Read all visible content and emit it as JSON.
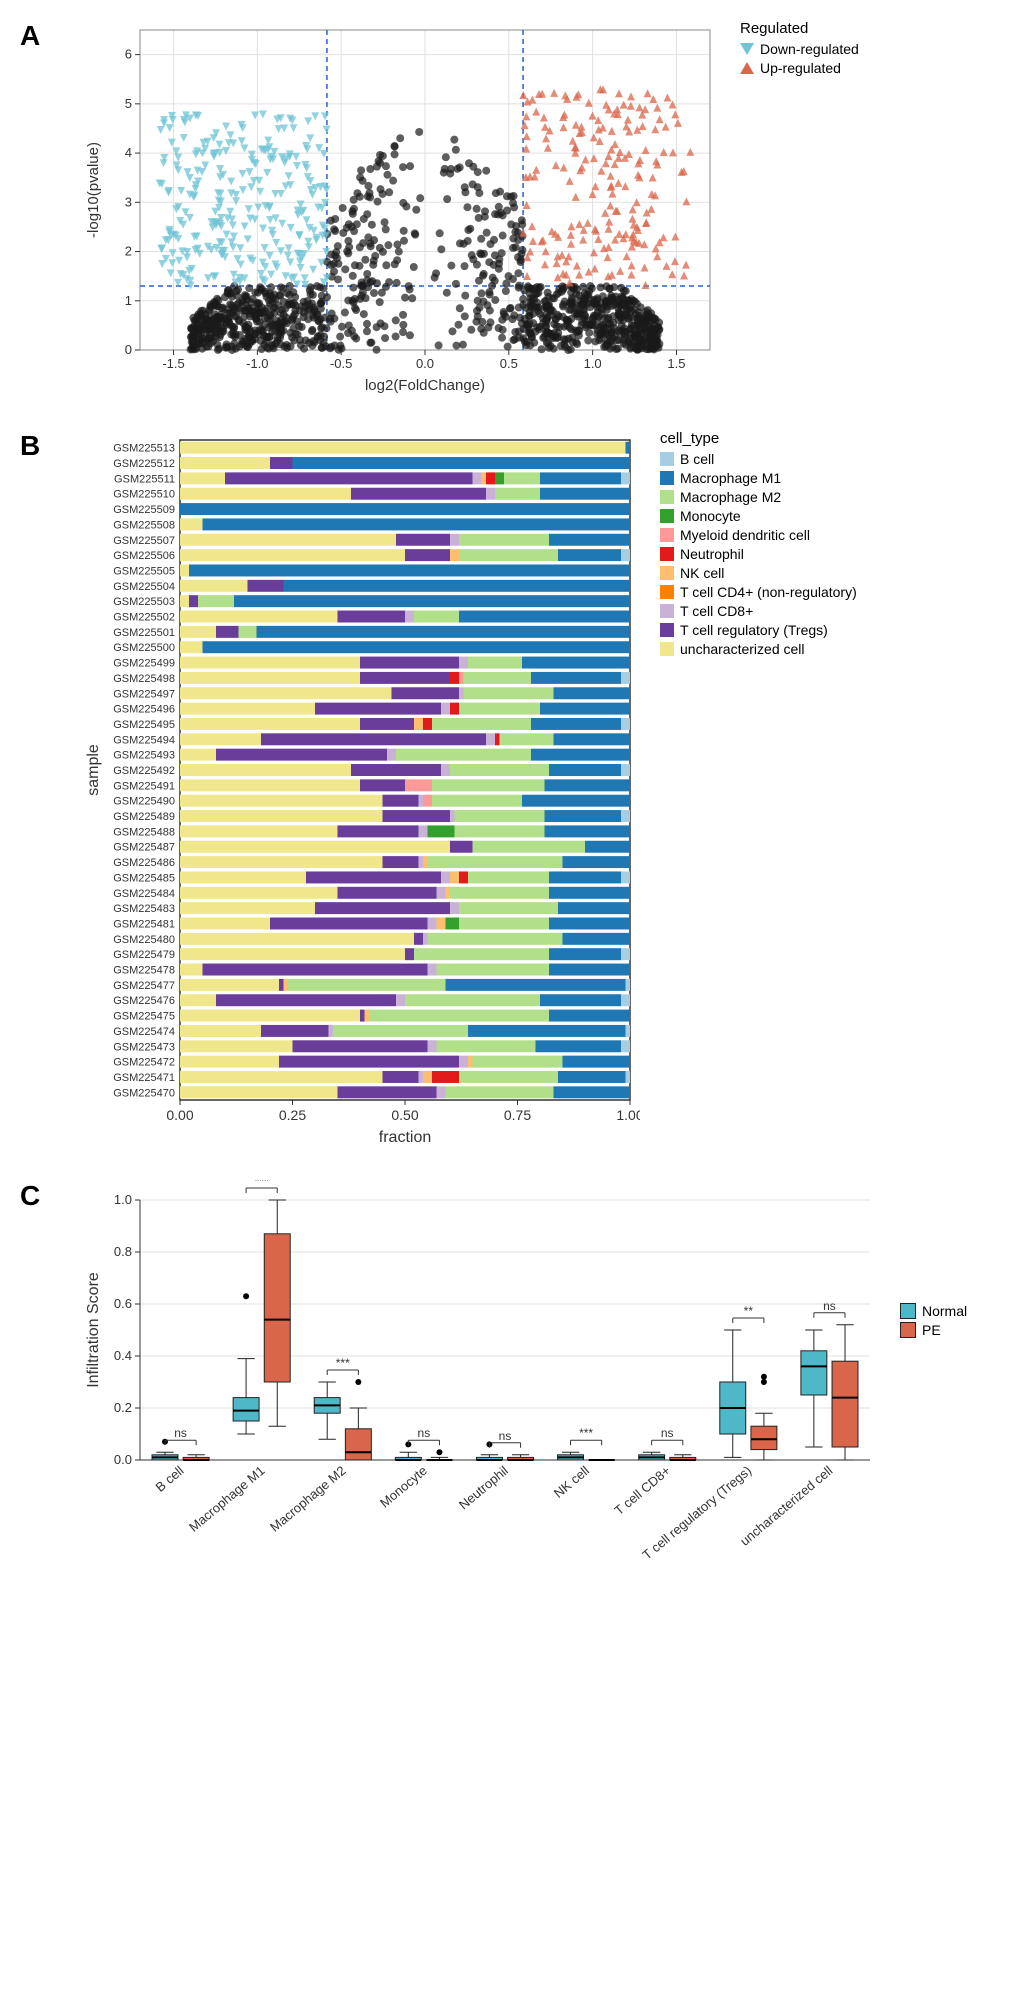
{
  "panelA": {
    "label": "A",
    "type": "volcano",
    "x_label": "log2(FoldChange)",
    "y_label": "-log10(pvalue)",
    "xlim": [
      -1.7,
      1.7
    ],
    "ylim": [
      0,
      6.5
    ],
    "xticks": [
      -1.5,
      -1.0,
      -0.5,
      0.0,
      0.5,
      1.0,
      1.5
    ],
    "yticks": [
      0,
      1,
      2,
      3,
      4,
      5,
      6
    ],
    "fc_threshold": 0.585,
    "p_threshold": 1.3,
    "dash_color": "#2b5fcb",
    "background_color": "#ffffff",
    "grid_color": "#e0e0e0",
    "legend_title": "Regulated",
    "legend_items": [
      {
        "label": "Down-regulated",
        "color": "#6fc4d5",
        "shape": "triangle-down"
      },
      {
        "label": "Up-regulated",
        "color": "#d9664a",
        "shape": "triangle-up"
      }
    ],
    "colors": {
      "down": "#6fc4d5",
      "up": "#d9664a",
      "ns": "#1a1a1a"
    },
    "point_size": 4,
    "n_points": {
      "ns": 1200,
      "down": 280,
      "up": 200
    }
  },
  "panelB": {
    "label": "B",
    "type": "stacked-bar",
    "x_label": "fraction",
    "y_label": "sample",
    "xlim": [
      0,
      1
    ],
    "xticks": [
      0.0,
      0.25,
      0.5,
      0.75,
      1.0
    ],
    "xtick_labels": [
      "0.00",
      "0.25",
      "0.50",
      "0.75",
      "1.00"
    ],
    "background_color": "#ffffff",
    "legend_title": "cell_type",
    "cell_types": [
      {
        "name": "B cell",
        "color": "#a6cee3"
      },
      {
        "name": "Macrophage M1",
        "color": "#1f78b4"
      },
      {
        "name": "Macrophage M2",
        "color": "#b2df8a"
      },
      {
        "name": "Monocyte",
        "color": "#33a02c"
      },
      {
        "name": "Myeloid dendritic cell",
        "color": "#fb9a99"
      },
      {
        "name": "Neutrophil",
        "color": "#e31a1c"
      },
      {
        "name": "NK cell",
        "color": "#fdbf6f"
      },
      {
        "name": "T cell CD4+ (non-regulatory)",
        "color": "#ff7f00"
      },
      {
        "name": "T cell CD8+",
        "color": "#cab2d6"
      },
      {
        "name": "T cell regulatory (Tregs)",
        "color": "#6a3d9a"
      },
      {
        "name": "uncharacterized cell",
        "color": "#f0e68c"
      }
    ],
    "samples": [
      {
        "id": "GSM225513",
        "f": {
          "uncharacterized cell": 0.99,
          "Macrophage M1": 0.01
        }
      },
      {
        "id": "GSM225512",
        "f": {
          "uncharacterized cell": 0.2,
          "T cell regulatory (Tregs)": 0.05,
          "Macrophage M1": 0.75
        }
      },
      {
        "id": "GSM225511",
        "f": {
          "uncharacterized cell": 0.1,
          "T cell regulatory (Tregs)": 0.55,
          "T cell CD8+": 0.02,
          "NK cell": 0.01,
          "Neutrophil": 0.02,
          "Monocyte": 0.02,
          "Macrophage M2": 0.08,
          "Macrophage M1": 0.18,
          "B cell": 0.02
        }
      },
      {
        "id": "GSM225510",
        "f": {
          "uncharacterized cell": 0.38,
          "T cell regulatory (Tregs)": 0.3,
          "T cell CD8+": 0.02,
          "Macrophage M2": 0.1,
          "Macrophage M1": 0.2
        }
      },
      {
        "id": "GSM225509",
        "f": {
          "Macrophage M1": 1.0
        }
      },
      {
        "id": "GSM225508",
        "f": {
          "uncharacterized cell": 0.05,
          "Macrophage M1": 0.95
        }
      },
      {
        "id": "GSM225507",
        "f": {
          "uncharacterized cell": 0.48,
          "T cell regulatory (Tregs)": 0.12,
          "T cell CD8+": 0.02,
          "Macrophage M2": 0.2,
          "Macrophage M1": 0.18
        }
      },
      {
        "id": "GSM225506",
        "f": {
          "uncharacterized cell": 0.5,
          "T cell regulatory (Tregs)": 0.1,
          "NK cell": 0.02,
          "Macrophage M2": 0.22,
          "Macrophage M1": 0.14,
          "B cell": 0.02
        }
      },
      {
        "id": "GSM225505",
        "f": {
          "uncharacterized cell": 0.02,
          "Macrophage M1": 0.98
        }
      },
      {
        "id": "GSM225504",
        "f": {
          "uncharacterized cell": 0.15,
          "T cell regulatory (Tregs)": 0.08,
          "Macrophage M1": 0.77
        }
      },
      {
        "id": "GSM225503",
        "f": {
          "uncharacterized cell": 0.02,
          "T cell regulatory (Tregs)": 0.02,
          "Macrophage M2": 0.08,
          "Macrophage M1": 0.88
        }
      },
      {
        "id": "GSM225502",
        "f": {
          "uncharacterized cell": 0.35,
          "T cell regulatory (Tregs)": 0.15,
          "T cell CD8+": 0.02,
          "Macrophage M2": 0.1,
          "Macrophage M1": 0.38
        }
      },
      {
        "id": "GSM225501",
        "f": {
          "uncharacterized cell": 0.08,
          "T cell regulatory (Tregs)": 0.05,
          "Macrophage M2": 0.04,
          "Macrophage M1": 0.83
        }
      },
      {
        "id": "GSM225500",
        "f": {
          "uncharacterized cell": 0.05,
          "Macrophage M1": 0.95
        }
      },
      {
        "id": "GSM225499",
        "f": {
          "uncharacterized cell": 0.4,
          "T cell regulatory (Tregs)": 0.22,
          "T cell CD8+": 0.02,
          "Macrophage M2": 0.12,
          "Macrophage M1": 0.24
        }
      },
      {
        "id": "GSM225498",
        "f": {
          "uncharacterized cell": 0.4,
          "T cell regulatory (Tregs)": 0.2,
          "Myeloid dendritic cell": 0.01,
          "Neutrophil": 0.02,
          "Macrophage M2": 0.15,
          "Macrophage M1": 0.2,
          "B cell": 0.02
        }
      },
      {
        "id": "GSM225497",
        "f": {
          "uncharacterized cell": 0.47,
          "T cell regulatory (Tregs)": 0.15,
          "T cell CD8+": 0.01,
          "Macrophage M2": 0.2,
          "Macrophage M1": 0.17
        }
      },
      {
        "id": "GSM225496",
        "f": {
          "uncharacterized cell": 0.3,
          "T cell regulatory (Tregs)": 0.28,
          "T cell CD8+": 0.02,
          "Neutrophil": 0.02,
          "Macrophage M2": 0.18,
          "Macrophage M1": 0.2
        }
      },
      {
        "id": "GSM225495",
        "f": {
          "uncharacterized cell": 0.4,
          "T cell regulatory (Tregs)": 0.12,
          "NK cell": 0.02,
          "Neutrophil": 0.02,
          "Macrophage M2": 0.22,
          "Macrophage M1": 0.2,
          "B cell": 0.02
        }
      },
      {
        "id": "GSM225494",
        "f": {
          "uncharacterized cell": 0.18,
          "T cell regulatory (Tregs)": 0.5,
          "T cell CD8+": 0.02,
          "Neutrophil": 0.01,
          "Macrophage M2": 0.12,
          "Macrophage M1": 0.17
        }
      },
      {
        "id": "GSM225493",
        "f": {
          "uncharacterized cell": 0.08,
          "T cell regulatory (Tregs)": 0.38,
          "T cell CD8+": 0.02,
          "Macrophage M2": 0.3,
          "Macrophage M1": 0.22
        }
      },
      {
        "id": "GSM225492",
        "f": {
          "uncharacterized cell": 0.38,
          "T cell regulatory (Tregs)": 0.2,
          "T cell CD8+": 0.02,
          "Macrophage M2": 0.22,
          "Macrophage M1": 0.16,
          "B cell": 0.02
        }
      },
      {
        "id": "GSM225491",
        "f": {
          "uncharacterized cell": 0.4,
          "T cell regulatory (Tregs)": 0.1,
          "Myeloid dendritic cell": 0.06,
          "Macrophage M2": 0.25,
          "Macrophage M1": 0.19
        }
      },
      {
        "id": "GSM225490",
        "f": {
          "uncharacterized cell": 0.45,
          "T cell regulatory (Tregs)": 0.08,
          "T cell CD8+": 0.01,
          "Myeloid dendritic cell": 0.02,
          "Macrophage M2": 0.2,
          "Macrophage M1": 0.24
        }
      },
      {
        "id": "GSM225489",
        "f": {
          "uncharacterized cell": 0.45,
          "T cell regulatory (Tregs)": 0.15,
          "T cell CD8+": 0.01,
          "Macrophage M2": 0.2,
          "Macrophage M1": 0.17,
          "B cell": 0.02
        }
      },
      {
        "id": "GSM225488",
        "f": {
          "uncharacterized cell": 0.35,
          "T cell regulatory (Tregs)": 0.18,
          "T cell CD8+": 0.02,
          "Monocyte": 0.06,
          "Macrophage M2": 0.2,
          "Macrophage M1": 0.19
        }
      },
      {
        "id": "GSM225487",
        "f": {
          "uncharacterized cell": 0.6,
          "T cell regulatory (Tregs)": 0.05,
          "Macrophage M2": 0.25,
          "Macrophage M1": 0.1
        }
      },
      {
        "id": "GSM225486",
        "f": {
          "uncharacterized cell": 0.45,
          "T cell regulatory (Tregs)": 0.08,
          "T cell CD8+": 0.01,
          "NK cell": 0.01,
          "Macrophage M2": 0.3,
          "Macrophage M1": 0.15
        }
      },
      {
        "id": "GSM225485",
        "f": {
          "uncharacterized cell": 0.28,
          "T cell regulatory (Tregs)": 0.3,
          "T cell CD8+": 0.02,
          "NK cell": 0.02,
          "Neutrophil": 0.02,
          "Macrophage M2": 0.18,
          "Macrophage M1": 0.16,
          "B cell": 0.02
        }
      },
      {
        "id": "GSM225484",
        "f": {
          "uncharacterized cell": 0.35,
          "T cell regulatory (Tregs)": 0.22,
          "T cell CD8+": 0.02,
          "NK cell": 0.01,
          "Macrophage M2": 0.22,
          "Macrophage M1": 0.18
        }
      },
      {
        "id": "GSM225483",
        "f": {
          "uncharacterized cell": 0.3,
          "T cell regulatory (Tregs)": 0.3,
          "T cell CD8+": 0.02,
          "Macrophage M2": 0.22,
          "Macrophage M1": 0.16
        }
      },
      {
        "id": "GSM225481",
        "f": {
          "uncharacterized cell": 0.2,
          "T cell regulatory (Tregs)": 0.35,
          "T cell CD8+": 0.02,
          "NK cell": 0.02,
          "Monocyte": 0.03,
          "Macrophage M2": 0.2,
          "Macrophage M1": 0.18
        }
      },
      {
        "id": "GSM225480",
        "f": {
          "uncharacterized cell": 0.52,
          "T cell regulatory (Tregs)": 0.02,
          "T cell CD8+": 0.01,
          "Macrophage M2": 0.3,
          "Macrophage M1": 0.15
        }
      },
      {
        "id": "GSM225479",
        "f": {
          "uncharacterized cell": 0.5,
          "T cell regulatory (Tregs)": 0.02,
          "Macrophage M2": 0.3,
          "Macrophage M1": 0.16,
          "B cell": 0.02
        }
      },
      {
        "id": "GSM225478",
        "f": {
          "uncharacterized cell": 0.05,
          "T cell regulatory (Tregs)": 0.5,
          "T cell CD8+": 0.02,
          "Macrophage M2": 0.25,
          "Macrophage M1": 0.18
        }
      },
      {
        "id": "GSM225477",
        "f": {
          "uncharacterized cell": 0.22,
          "T cell regulatory (Tregs)": 0.01,
          "NK cell": 0.01,
          "Macrophage M2": 0.35,
          "Macrophage M1": 0.4,
          "B cell": 0.01
        }
      },
      {
        "id": "GSM225476",
        "f": {
          "uncharacterized cell": 0.08,
          "T cell regulatory (Tregs)": 0.4,
          "T cell CD8+": 0.02,
          "Macrophage M2": 0.3,
          "Macrophage M1": 0.18,
          "B cell": 0.02
        }
      },
      {
        "id": "GSM225475",
        "f": {
          "uncharacterized cell": 0.4,
          "T cell regulatory (Tregs)": 0.01,
          "NK cell": 0.01,
          "Macrophage M2": 0.4,
          "Macrophage M1": 0.18
        }
      },
      {
        "id": "GSM225474",
        "f": {
          "uncharacterized cell": 0.18,
          "T cell regulatory (Tregs)": 0.15,
          "T cell CD8+": 0.01,
          "Macrophage M2": 0.3,
          "Macrophage M1": 0.35,
          "B cell": 0.01
        }
      },
      {
        "id": "GSM225473",
        "f": {
          "uncharacterized cell": 0.25,
          "T cell regulatory (Tregs)": 0.3,
          "T cell CD8+": 0.02,
          "Macrophage M2": 0.22,
          "Macrophage M1": 0.19,
          "B cell": 0.02
        }
      },
      {
        "id": "GSM225472",
        "f": {
          "uncharacterized cell": 0.22,
          "T cell regulatory (Tregs)": 0.4,
          "T cell CD8+": 0.02,
          "NK cell": 0.01,
          "Macrophage M2": 0.2,
          "Macrophage M1": 0.15
        }
      },
      {
        "id": "GSM225471",
        "f": {
          "uncharacterized cell": 0.45,
          "T cell regulatory (Tregs)": 0.08,
          "T cell CD8+": 0.01,
          "NK cell": 0.02,
          "Neutrophil": 0.06,
          "Macrophage M2": 0.22,
          "Macrophage M1": 0.15,
          "B cell": 0.01
        }
      },
      {
        "id": "GSM225470",
        "f": {
          "uncharacterized cell": 0.35,
          "T cell regulatory (Tregs)": 0.22,
          "T cell CD8+": 0.02,
          "Macrophage M2": 0.24,
          "Macrophage M1": 0.17
        }
      }
    ]
  },
  "panelC": {
    "label": "C",
    "type": "boxplot",
    "y_label": "Infiltration Score",
    "ylim": [
      0,
      1.0
    ],
    "yticks": [
      0.0,
      0.2,
      0.4,
      0.6,
      0.8,
      1.0
    ],
    "legend_items": [
      {
        "label": "Normal",
        "color": "#4fb8c8"
      },
      {
        "label": "PE",
        "color": "#d9664a"
      }
    ],
    "categories": [
      {
        "name": "B cell",
        "sig": "ns",
        "normal": {
          "q1": 0.0,
          "med": 0.01,
          "q3": 0.02,
          "lo": 0.0,
          "hi": 0.03,
          "out": [
            0.07
          ]
        },
        "pe": {
          "q1": 0.0,
          "med": 0.0,
          "q3": 0.01,
          "lo": 0.0,
          "hi": 0.02,
          "out": []
        }
      },
      {
        "name": "Macrophage M1",
        "sig": "***",
        "normal": {
          "q1": 0.15,
          "med": 0.19,
          "q3": 0.24,
          "lo": 0.1,
          "hi": 0.39,
          "out": [
            0.63
          ]
        },
        "pe": {
          "q1": 0.3,
          "med": 0.54,
          "q3": 0.87,
          "lo": 0.13,
          "hi": 1.0,
          "out": []
        }
      },
      {
        "name": "Macrophage M2",
        "sig": "***",
        "normal": {
          "q1": 0.18,
          "med": 0.21,
          "q3": 0.24,
          "lo": 0.08,
          "hi": 0.3,
          "out": []
        },
        "pe": {
          "q1": 0.0,
          "med": 0.03,
          "q3": 0.12,
          "lo": 0.0,
          "hi": 0.2,
          "out": [
            0.3
          ]
        }
      },
      {
        "name": "Monocyte",
        "sig": "ns",
        "normal": {
          "q1": 0.0,
          "med": 0.0,
          "q3": 0.01,
          "lo": 0.0,
          "hi": 0.03,
          "out": [
            0.06
          ]
        },
        "pe": {
          "q1": 0.0,
          "med": 0.0,
          "q3": 0.0,
          "lo": 0.0,
          "hi": 0.01,
          "out": [
            0.03
          ]
        }
      },
      {
        "name": "Neutrophil",
        "sig": "ns",
        "normal": {
          "q1": 0.0,
          "med": 0.0,
          "q3": 0.01,
          "lo": 0.0,
          "hi": 0.02,
          "out": [
            0.06
          ]
        },
        "pe": {
          "q1": 0.0,
          "med": 0.0,
          "q3": 0.01,
          "lo": 0.0,
          "hi": 0.02,
          "out": []
        }
      },
      {
        "name": "NK cell",
        "sig": "***",
        "normal": {
          "q1": 0.0,
          "med": 0.01,
          "q3": 0.02,
          "lo": 0.0,
          "hi": 0.03,
          "out": []
        },
        "pe": {
          "q1": 0.0,
          "med": 0.0,
          "q3": 0.0,
          "lo": 0.0,
          "hi": 0.0,
          "out": []
        }
      },
      {
        "name": "T cell CD8+",
        "sig": "ns",
        "normal": {
          "q1": 0.0,
          "med": 0.01,
          "q3": 0.02,
          "lo": 0.0,
          "hi": 0.03,
          "out": []
        },
        "pe": {
          "q1": 0.0,
          "med": 0.0,
          "q3": 0.01,
          "lo": 0.0,
          "hi": 0.02,
          "out": []
        }
      },
      {
        "name": "T cell regulatory (Tregs)",
        "sig": "**",
        "normal": {
          "q1": 0.1,
          "med": 0.2,
          "q3": 0.3,
          "lo": 0.01,
          "hi": 0.5,
          "out": []
        },
        "pe": {
          "q1": 0.04,
          "med": 0.08,
          "q3": 0.13,
          "lo": 0.0,
          "hi": 0.18,
          "out": [
            0.3,
            0.32
          ]
        }
      },
      {
        "name": "uncharacterized cell",
        "sig": "ns",
        "normal": {
          "q1": 0.25,
          "med": 0.36,
          "q3": 0.42,
          "lo": 0.05,
          "hi": 0.5,
          "out": []
        },
        "pe": {
          "q1": 0.05,
          "med": 0.24,
          "q3": 0.38,
          "lo": 0.0,
          "hi": 0.52,
          "out": []
        }
      }
    ]
  }
}
